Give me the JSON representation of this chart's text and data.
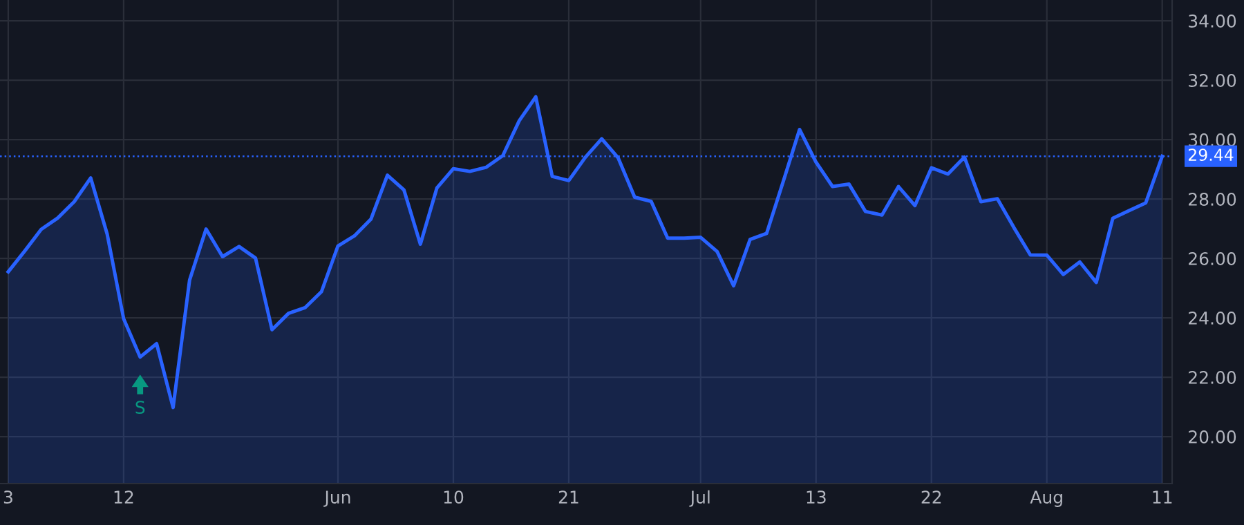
{
  "chart_data": {
    "type": "area",
    "categories": [
      "3",
      null,
      null,
      null,
      null,
      null,
      null,
      "12",
      null,
      null,
      null,
      null,
      null,
      null,
      null,
      null,
      null,
      null,
      null,
      null,
      "Jun",
      null,
      null,
      null,
      null,
      null,
      null,
      "10",
      null,
      null,
      null,
      null,
      null,
      null,
      "21",
      null,
      null,
      null,
      null,
      null,
      null,
      null,
      "Jul",
      null,
      null,
      null,
      null,
      null,
      null,
      "13",
      null,
      null,
      null,
      null,
      null,
      null,
      "22",
      null,
      null,
      null,
      null,
      null,
      null,
      "Aug",
      null,
      null,
      null,
      null,
      null,
      null,
      "11"
    ],
    "series": [
      {
        "color": "#2962ff",
        "values": [
          25.55,
          26.25,
          26.98,
          27.36,
          27.91,
          28.71,
          26.82,
          23.97,
          22.68,
          23.13,
          20.98,
          25.27,
          26.99,
          26.06,
          26.4,
          26.01,
          23.6,
          24.15,
          24.34,
          24.88,
          26.42,
          26.76,
          27.32,
          28.8,
          28.31,
          26.48,
          28.37,
          29.02,
          28.93,
          29.07,
          29.46,
          30.64,
          31.44,
          28.76,
          28.62,
          29.4,
          30.03,
          29.38,
          28.06,
          27.92,
          26.68,
          26.68,
          26.71,
          26.23,
          25.08,
          26.64,
          26.84,
          28.57,
          30.34,
          29.24,
          28.42,
          28.5,
          27.58,
          27.46,
          28.42,
          27.78,
          29.05,
          28.84,
          29.41,
          27.91,
          28.01,
          27.04,
          26.12,
          26.11,
          25.46,
          25.88,
          25.19,
          27.35,
          27.61,
          27.87,
          29.44
        ]
      }
    ],
    "ylim": [
      18.42,
      34.7
    ],
    "yticks": [
      {
        "value": 20,
        "label": "20.00"
      },
      {
        "value": 22,
        "label": "22.00"
      },
      {
        "value": 24,
        "label": "24.00"
      },
      {
        "value": 26,
        "label": "26.00"
      },
      {
        "value": 28,
        "label": "28.00"
      },
      {
        "value": 30,
        "label": "30.00"
      },
      {
        "value": 32,
        "label": "32.00"
      },
      {
        "value": 34,
        "label": "34.00"
      }
    ],
    "ref_lines": [
      {
        "axis": "y",
        "value": 29.44,
        "label": "29.44",
        "color": "#2962ff",
        "line_style": "dotted"
      }
    ],
    "annotations": [
      "S"
    ],
    "grid": true,
    "legend": false
  }
}
